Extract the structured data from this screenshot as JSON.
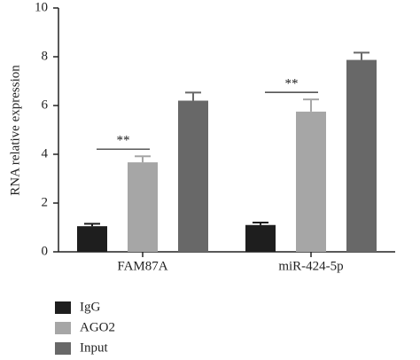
{
  "chart_data": {
    "type": "bar",
    "ylabel": "RNA relative expression",
    "categories": [
      "FAM87A",
      "miR-424-5p"
    ],
    "series": [
      {
        "name": "IgG",
        "color": "#1e1e1e",
        "values": [
          1.05,
          1.1
        ],
        "errors": [
          0.1,
          0.1
        ]
      },
      {
        "name": "AGO2",
        "color": "#a6a6a6",
        "values": [
          3.67,
          5.75
        ],
        "errors": [
          0.25,
          0.5
        ]
      },
      {
        "name": "Input",
        "color": "#686868",
        "values": [
          6.2,
          7.87
        ],
        "errors": [
          0.33,
          0.3
        ]
      }
    ],
    "annotations": [
      "**",
      "**"
    ],
    "ylim": [
      0,
      10
    ],
    "yticks": [
      0,
      2,
      4,
      6,
      8,
      10
    ],
    "legend": "bottom-left"
  }
}
